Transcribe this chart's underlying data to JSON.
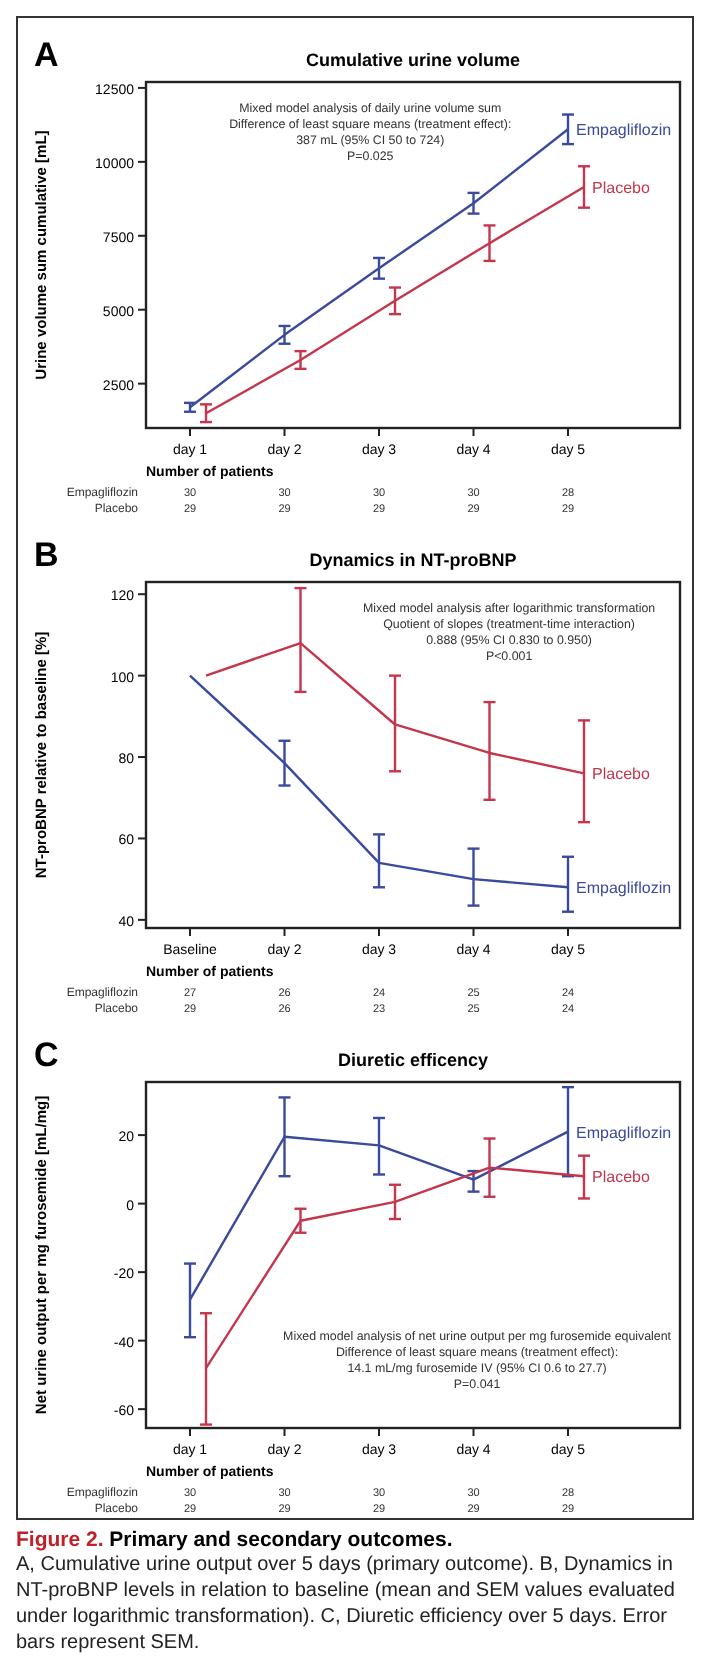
{
  "chart_data": [
    {
      "type": "line",
      "title": "Cumulative urine volume",
      "ylabel": "Urine volume sum cumulative [mL]",
      "categories": [
        "day 1",
        "day 2",
        "day 3",
        "day 4",
        "day 5"
      ],
      "ylim": [
        1000,
        12700
      ],
      "yticks": [
        2500,
        5000,
        7500,
        10000,
        12500
      ],
      "legend": false,
      "series": [
        {
          "name": "Empagliflozin",
          "color": "#3a4a9c",
          "values": [
            1700,
            4150,
            6400,
            8600,
            11100
          ],
          "errors": [
            150,
            300,
            350,
            350,
            500
          ]
        },
        {
          "name": "Placebo",
          "color": "#c4364c",
          "values": [
            1500,
            3300,
            5300,
            7250,
            9150
          ],
          "errors": [
            300,
            300,
            450,
            600,
            700
          ]
        }
      ],
      "annotations": [
        "A",
        "Mixed model analysis of daily urine volume sum\nDifference of least square means (treatment effect):\n387 mL (95% CI 50 to 724)\nP=0.025",
        "Number of patients",
        "Empagliflozin",
        "30 30 30 30 28",
        "Placebo",
        "29 29 29 29 29"
      ]
    },
    {
      "type": "line",
      "title": "Dynamics in NT-proBNP",
      "ylabel": "NT-proBNP relative to baseline [%]",
      "categories": [
        "Baseline",
        "day 2",
        "day 3",
        "day 4",
        "day 5"
      ],
      "ylim": [
        38,
        123
      ],
      "yticks": [
        40,
        60,
        80,
        100,
        120
      ],
      "legend": false,
      "series": [
        {
          "name": "Empagliflozin",
          "color": "#3a4a9c",
          "values": [
            100,
            78.5,
            54,
            50,
            48
          ],
          "errors": [
            null,
            [
              73,
              84
            ],
            [
              48,
              61
            ],
            [
              43.5,
              57.5
            ],
            [
              42,
              55.5
            ]
          ]
        },
        {
          "name": "Placebo",
          "color": "#c4364c",
          "values": [
            100,
            108,
            88,
            81,
            76
          ],
          "errors": [
            null,
            [
              96,
              121.5
            ],
            [
              76.5,
              100
            ],
            [
              69.5,
              93.5
            ],
            [
              64,
              89
            ]
          ]
        }
      ],
      "annotations": [
        "B",
        "Mixed model analysis after logarithmic transformation\nQuotient of slopes (treatment-time interaction)\n0.888 (95% CI 0.830 to 0.950)\nP<0.001",
        "Number of patients",
        "Empagliflozin",
        "27 26 24 25 24",
        "Placebo",
        "29 26 23 25 24"
      ]
    },
    {
      "type": "line",
      "title": "Diuretic efficency",
      "ylabel": "Net urine output per mg furosemide [mL/mg]",
      "categories": [
        "day 1",
        "day 2",
        "day 3",
        "day 4",
        "day 5"
      ],
      "ylim": [
        -65.5,
        35.5
      ],
      "yticks": [
        -60,
        -40,
        -20,
        0,
        20
      ],
      "legend": false,
      "series": [
        {
          "name": "Empagliflozin",
          "color": "#3a4a9c",
          "values": [
            -28,
            19.5,
            17,
            7,
            21
          ],
          "errors": [
            [
              -39,
              -17.5
            ],
            [
              8,
              31
            ],
            [
              8.5,
              25
            ],
            [
              3.5,
              9.5
            ],
            [
              8,
              34
            ]
          ]
        },
        {
          "name": "Placebo",
          "color": "#c4364c",
          "values": [
            -48,
            -5,
            0.5,
            10.5,
            8
          ],
          "errors": [
            [
              -64.5,
              -32
            ],
            [
              -8.5,
              -1.5
            ],
            [
              -4.5,
              5.5
            ],
            [
              2,
              19
            ],
            [
              1.5,
              14
            ]
          ]
        }
      ],
      "annotations": [
        "C",
        "Mixed model analysis of net urine output per mg furosemide equivalent\nDifference of least square means (treatment effect):\n14.1 mL/mg furosemide IV (95% CI 0.6 to 27.7)\nP=0.041",
        "Number of patients",
        "Empagliflozin",
        "30 30 30 30 28",
        "Placebo",
        "29 29 29 29 29",
        "Figure 2. Primary and secondary outcomes.",
        "A, Cumulative urine output over 5 days (primary outcome). B, Dynamics in NT-proBNP levels in relation to baseline (mean and SEM values evaluated under logarithmic transformation). C, Diuretic efficiency over 5 days. Error bars represent SEM."
      ]
    }
  ]
}
